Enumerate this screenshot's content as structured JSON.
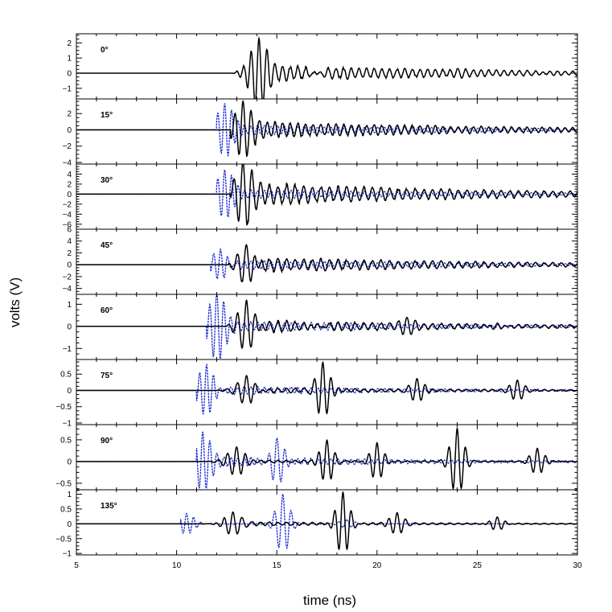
{
  "chart_data": {
    "type": "line",
    "xlabel": "time (ns)",
    "ylabel": "volts (V)",
    "xlim": [
      5,
      30
    ],
    "xticks": [
      5,
      10,
      15,
      20,
      25,
      30
    ],
    "series_styles": {
      "solid": {
        "color": "#000000",
        "dash": "solid"
      },
      "dotted": {
        "color": "#1f2fd6",
        "dash": "dotted"
      }
    },
    "panels": [
      {
        "label": "0°",
        "ylim": [
          -1.7,
          2.6
        ],
        "yticks": [
          -1,
          0,
          1,
          2
        ],
        "ytick_labels": [
          "−1",
          "0",
          "1",
          "2"
        ],
        "has_dotted": false,
        "solid": {
          "onset": 12.8,
          "peak_t": 14.1,
          "peak": 2.2,
          "trough": -1.6,
          "period": 0.4,
          "tail": 0.25,
          "bursts": [
            {
              "t": 17.0,
              "a": 0.35
            },
            {
              "t": 24.0,
              "a": 0.15
            },
            {
              "t": 28.0,
              "a": 0.15
            }
          ]
        },
        "dotted": null
      },
      {
        "label": "15°",
        "ylim": [
          -4.2,
          3.8
        ],
        "yticks": [
          -4,
          -2,
          0,
          2
        ],
        "ytick_labels": [
          "−4",
          "−2",
          "0",
          "2"
        ],
        "has_dotted": true,
        "solid": {
          "onset": 12.7,
          "peak_t": 13.3,
          "peak": 3.2,
          "trough": -3.5,
          "period": 0.4,
          "tail": 0.3,
          "bursts": []
        },
        "dotted": {
          "onset": 12.0,
          "peak_t": 12.4,
          "peak": 3.0,
          "trough": -3.0,
          "period": 0.35,
          "tail": 0.2,
          "bursts": []
        }
      },
      {
        "label": "30°",
        "ylim": [
          -7,
          6
        ],
        "yticks": [
          -6,
          -4,
          -2,
          0,
          2,
          4
        ],
        "ytick_labels": [
          "−6",
          "−4",
          "−2",
          "0",
          "2",
          "4"
        ],
        "has_dotted": true,
        "solid": {
          "onset": 12.7,
          "peak_t": 13.3,
          "peak": 4.5,
          "trough": -6.0,
          "period": 0.45,
          "tail": 0.4,
          "bursts": []
        },
        "dotted": {
          "onset": 12.0,
          "peak_t": 12.4,
          "peak": 4.0,
          "trough": -5.0,
          "period": 0.35,
          "tail": 0.2,
          "bursts": []
        }
      },
      {
        "label": "45°",
        "ylim": [
          -5,
          6
        ],
        "yticks": [
          -4,
          -2,
          0,
          2,
          4,
          6
        ],
        "ytick_labels": [
          "−4",
          "−2",
          "0",
          "2",
          "4",
          "6"
        ],
        "has_dotted": true,
        "solid": {
          "onset": 12.6,
          "peak_t": 13.5,
          "peak": 4.0,
          "trough": -4.0,
          "period": 0.45,
          "tail": 0.3,
          "bursts": []
        },
        "dotted": {
          "onset": 11.7,
          "peak_t": 12.2,
          "peak": 3.0,
          "trough": -3.0,
          "period": 0.35,
          "tail": 0.25,
          "bursts": []
        }
      },
      {
        "label": "60°",
        "ylim": [
          -1.5,
          1.45
        ],
        "yticks": [
          -1,
          0,
          1
        ],
        "ytick_labels": [
          "−1",
          "0",
          "1"
        ],
        "has_dotted": true,
        "solid": {
          "onset": 12.5,
          "peak_t": 13.5,
          "peak": 1.2,
          "trough": -1.4,
          "period": 0.45,
          "tail": 0.2,
          "bursts": [
            {
              "t": 17.0,
              "a": 0.3
            },
            {
              "t": 21.5,
              "a": 0.3
            },
            {
              "t": 26.0,
              "a": 0.25
            }
          ]
        },
        "dotted": {
          "onset": 11.5,
          "peak_t": 12.0,
          "peak": 1.4,
          "trough": -1.5,
          "period": 0.35,
          "tail": 0.15,
          "bursts": []
        }
      },
      {
        "label": "75°",
        "ylim": [
          -1.05,
          0.95
        ],
        "yticks": [
          -1,
          -0.5,
          0,
          0.5
        ],
        "ytick_labels": [
          "−1",
          "−0.5",
          "0",
          "0.5"
        ],
        "has_dotted": true,
        "solid": {
          "onset": 12.0,
          "peak_t": 13.5,
          "peak": 0.5,
          "trough": -0.5,
          "period": 0.45,
          "tail": 0.15,
          "bursts": [
            {
              "t": 17.3,
              "a": 0.85
            },
            {
              "t": 22.0,
              "a": 0.35
            },
            {
              "t": 27.0,
              "a": 0.3
            }
          ]
        },
        "dotted": {
          "onset": 11.0,
          "peak_t": 11.5,
          "peak": 0.8,
          "trough": -0.85,
          "period": 0.35,
          "tail": 0.15,
          "bursts": []
        }
      },
      {
        "label": "90°",
        "ylim": [
          -0.65,
          0.85
        ],
        "yticks": [
          -0.5,
          0,
          0.5
        ],
        "ytick_labels": [
          "−0.5",
          "0",
          "0.5"
        ],
        "has_dotted": true,
        "solid": {
          "onset": 11.5,
          "peak_t": 13.0,
          "peak": 0.35,
          "trough": -0.3,
          "period": 0.45,
          "tail": 0.1,
          "bursts": [
            {
              "t": 17.5,
              "a": 0.5
            },
            {
              "t": 20.0,
              "a": 0.45
            },
            {
              "t": 24.0,
              "a": 0.75
            },
            {
              "t": 28.0,
              "a": 0.3
            }
          ]
        },
        "dotted": {
          "onset": 11.0,
          "peak_t": 11.3,
          "peak": 0.7,
          "trough": -0.65,
          "period": 0.35,
          "tail": 0.15,
          "bursts": [
            {
              "t": 15.0,
              "a": 0.5
            }
          ]
        }
      },
      {
        "label": "135°",
        "ylim": [
          -1.05,
          1.15
        ],
        "yticks": [
          -1,
          -0.5,
          0,
          0.5,
          1
        ],
        "ytick_labels": [
          "−1",
          "−0.5",
          "0",
          "0.5",
          "1"
        ],
        "has_dotted": true,
        "solid": {
          "onset": 11.5,
          "peak_t": 12.8,
          "peak": 0.4,
          "trough": -0.4,
          "period": 0.45,
          "tail": 0.15,
          "bursts": [
            {
              "t": 18.3,
              "a": 1.1
            },
            {
              "t": 21.0,
              "a": 0.35
            },
            {
              "t": 26.0,
              "a": 0.25
            }
          ]
        },
        "dotted": {
          "onset": 10.2,
          "peak_t": 10.5,
          "peak": 0.4,
          "trough": -0.3,
          "period": 0.35,
          "tail": 0.05,
          "bursts": [
            {
              "t": 15.3,
              "a": 1.0
            },
            {
              "t": 18.5,
              "a": 0.15
            }
          ]
        }
      }
    ]
  }
}
